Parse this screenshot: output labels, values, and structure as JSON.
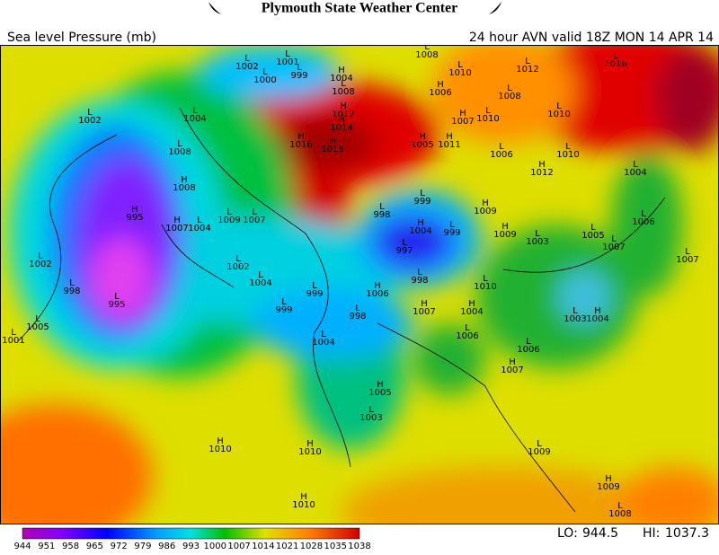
{
  "header": {
    "title": "Plymouth State Weather Center",
    "field": "Sea level Pressure (mb)",
    "valid": "24 hour AVN valid 18Z MON 14 APR 14"
  },
  "markers": [
    {
      "type": "L",
      "value": 1002
    },
    {
      "type": "H",
      "value": 995
    },
    {
      "type": "L",
      "value": 995
    },
    {
      "type": "L",
      "value": 1002
    },
    {
      "type": "L",
      "value": 998
    },
    {
      "type": "L",
      "value": 1005
    },
    {
      "type": "L",
      "value": 1001
    },
    {
      "type": "H",
      "value": 1007
    },
    {
      "type": "L",
      "value": 1004
    },
    {
      "type": "L",
      "value": 1004
    },
    {
      "type": "H",
      "value": 1008
    },
    {
      "type": "L",
      "value": 1008
    },
    {
      "type": "L",
      "value": 1002
    },
    {
      "type": "L",
      "value": 1000
    },
    {
      "type": "L",
      "value": 1001
    },
    {
      "type": "L",
      "value": 999
    },
    {
      "type": "H",
      "value": 1004
    },
    {
      "type": "L",
      "value": 1008
    },
    {
      "type": "H",
      "value": 1012
    },
    {
      "type": "H",
      "value": 1014
    },
    {
      "type": "H",
      "value": 1016
    },
    {
      "type": "H",
      "value": 1016
    },
    {
      "type": "L",
      "value": 1009
    },
    {
      "type": "L",
      "value": 1007
    },
    {
      "type": "L",
      "value": 1002
    },
    {
      "type": "L",
      "value": 1004
    },
    {
      "type": "L",
      "value": 999
    },
    {
      "type": "L",
      "value": 999
    },
    {
      "type": "L",
      "value": 998
    },
    {
      "type": "L",
      "value": 1004
    },
    {
      "type": "L",
      "value": 998
    },
    {
      "type": "L",
      "value": 999
    },
    {
      "type": "H",
      "value": 1004
    },
    {
      "type": "L",
      "value": 999
    },
    {
      "type": "L",
      "value": 997
    },
    {
      "type": "L",
      "value": 998
    },
    {
      "type": "H",
      "value": 1005
    },
    {
      "type": "H",
      "value": 1011
    },
    {
      "type": "H",
      "value": 1007
    },
    {
      "type": "L",
      "value": 1010
    },
    {
      "type": "L",
      "value": 1006
    },
    {
      "type": "H",
      "value": 1012
    },
    {
      "type": "L",
      "value": 1010
    },
    {
      "type": "L",
      "value": 1010
    },
    {
      "type": "L",
      "value": 1004
    },
    {
      "type": "L",
      "value": 1006
    },
    {
      "type": "L",
      "value": 1007
    },
    {
      "type": "L",
      "value": 1005
    },
    {
      "type": "L",
      "value": 1007
    },
    {
      "type": "L",
      "value": 1003
    },
    {
      "type": "H",
      "value": 1009
    },
    {
      "type": "H",
      "value": 1009
    },
    {
      "type": "L",
      "value": 1010
    },
    {
      "type": "H",
      "value": 1006
    },
    {
      "type": "H",
      "value": 1007
    },
    {
      "type": "H",
      "value": 1004
    },
    {
      "type": "L",
      "value": 1006
    },
    {
      "type": "L",
      "value": 1006
    },
    {
      "type": "H",
      "value": 1007
    },
    {
      "type": "L",
      "value": 1003
    },
    {
      "type": "H",
      "value": 1004
    },
    {
      "type": "H",
      "value": 1005
    },
    {
      "type": "L",
      "value": 1003
    },
    {
      "type": "H",
      "value": 1010
    },
    {
      "type": "H",
      "value": 1010
    },
    {
      "type": "H",
      "value": 1010
    },
    {
      "type": "L",
      "value": 1009
    },
    {
      "type": "H",
      "value": 1009
    },
    {
      "type": "L",
      "value": 1008
    },
    {
      "type": "L",
      "value": 1012
    },
    {
      "type": "L",
      "value": 1016
    },
    {
      "type": "L",
      "value": 1008
    },
    {
      "type": "L",
      "value": 1010
    },
    {
      "type": "L",
      "value": 1008
    },
    {
      "type": "H",
      "value": 1006
    }
  ],
  "colorbar": {
    "labels": [
      944,
      951,
      958,
      965,
      972,
      979,
      986,
      993,
      1000,
      1007,
      1014,
      1021,
      1028,
      1035,
      1038
    ]
  },
  "extremes": {
    "lo_label": "LO:",
    "lo": 944.5,
    "hi_label": "HI:",
    "hi": 1037.3
  }
}
